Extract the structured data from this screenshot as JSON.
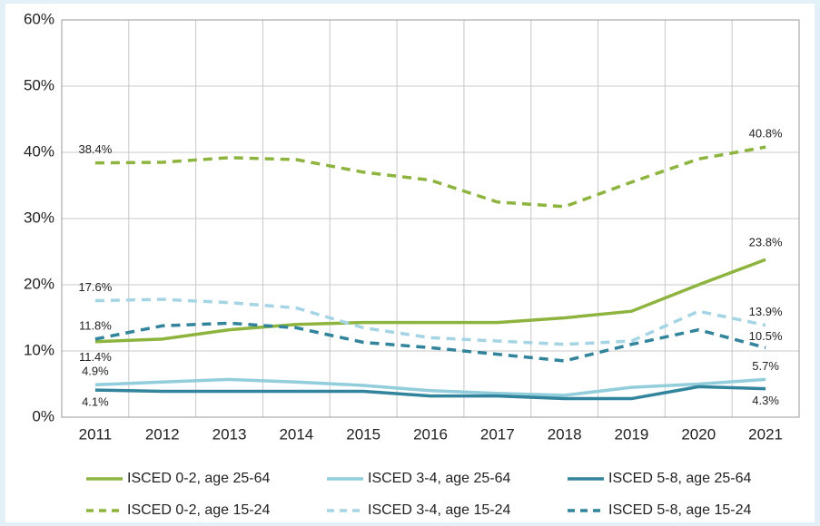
{
  "chart_data": {
    "type": "line",
    "categories": [
      "2011",
      "2012",
      "2013",
      "2014",
      "2015",
      "2016",
      "2017",
      "2018",
      "2019",
      "2020",
      "2021"
    ],
    "series": [
      {
        "name": "ISCED 0-2, age 25-64",
        "color": "#8db43e",
        "dash": false,
        "values": [
          11.4,
          11.8,
          13.2,
          14.0,
          14.3,
          14.3,
          14.3,
          15.0,
          16.0,
          20.0,
          23.8
        ],
        "value_labels": [
          "11.4%",
          null,
          null,
          null,
          null,
          null,
          null,
          null,
          null,
          null,
          "23.8%"
        ]
      },
      {
        "name": "ISCED 3-4, age 25-64",
        "color": "#92cddc",
        "dash": false,
        "values": [
          4.9,
          5.3,
          5.7,
          5.3,
          4.8,
          4.0,
          3.6,
          3.3,
          4.5,
          5.0,
          5.7
        ],
        "value_labels": [
          "4.9%",
          null,
          null,
          null,
          null,
          null,
          null,
          null,
          null,
          null,
          "5.7%"
        ]
      },
      {
        "name": "ISCED 5-8, age 25-64",
        "color": "#31849b",
        "dash": false,
        "values": [
          4.1,
          3.9,
          3.9,
          3.9,
          3.9,
          3.2,
          3.2,
          2.8,
          2.8,
          4.6,
          4.3
        ],
        "value_labels": [
          "4.1%",
          null,
          null,
          null,
          null,
          null,
          null,
          null,
          null,
          null,
          "4.3%"
        ]
      },
      {
        "name": "ISCED 0-2, age 15-24",
        "color": "#8db43e",
        "dash": true,
        "values": [
          38.4,
          38.5,
          39.2,
          38.9,
          37.0,
          35.8,
          32.5,
          31.8,
          35.5,
          39.0,
          40.8
        ],
        "value_labels": [
          "38.4%",
          null,
          null,
          null,
          null,
          null,
          null,
          null,
          null,
          null,
          "40.8%"
        ]
      },
      {
        "name": "ISCED 3-4, age 15-24",
        "color": "#a5d5e5",
        "dash": true,
        "values": [
          17.6,
          17.8,
          17.3,
          16.5,
          13.5,
          12.0,
          11.5,
          11.0,
          11.5,
          16.0,
          13.9
        ],
        "value_labels": [
          "17.6%",
          null,
          null,
          null,
          null,
          null,
          null,
          null,
          null,
          null,
          "13.9%"
        ]
      },
      {
        "name": "ISCED 5-8, age 15-24",
        "color": "#31849b",
        "dash": true,
        "values": [
          11.8,
          13.8,
          14.2,
          13.5,
          11.3,
          10.5,
          9.5,
          8.5,
          11.0,
          13.2,
          10.5
        ],
        "value_labels": [
          "11.8%",
          null,
          null,
          null,
          null,
          null,
          null,
          null,
          null,
          null,
          "10.5%"
        ]
      }
    ],
    "ylim": [
      0,
      60
    ],
    "yticks": [
      {
        "value": 0,
        "label": "0%"
      },
      {
        "value": 10,
        "label": "10%"
      },
      {
        "value": 20,
        "label": "20%"
      },
      {
        "value": 30,
        "label": "30%"
      },
      {
        "value": 40,
        "label": "40%"
      },
      {
        "value": 50,
        "label": "50%"
      },
      {
        "value": 60,
        "label": "60%"
      }
    ],
    "grid": true,
    "legend": "bottom"
  }
}
